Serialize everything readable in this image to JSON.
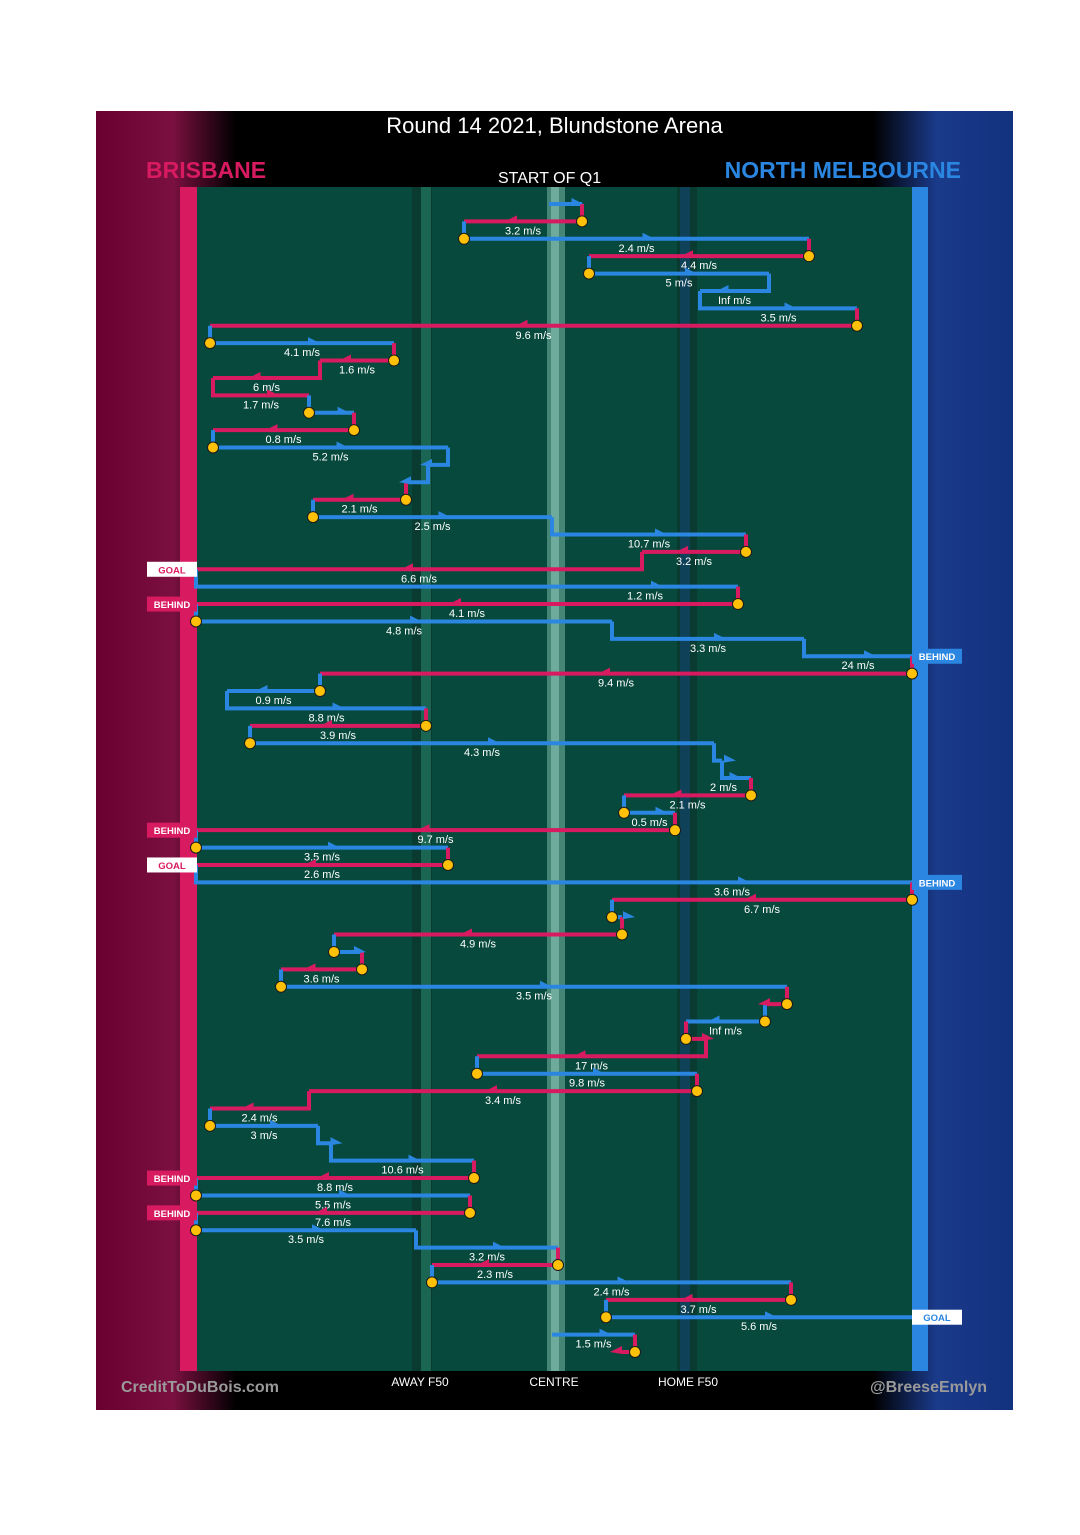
{
  "header": {
    "title": "Round 14 2021, Blundstone Arena",
    "team_left": "BRISBANE",
    "team_right": "NORTH MELBOURNE",
    "subtitle": "START OF Q1"
  },
  "footer": {
    "credit_left": "CreditToDuBois.com",
    "credit_right": "@BreeseEmlyn"
  },
  "colors": {
    "brisbane": "#d81b60",
    "north_melbourne": "#2a86e0",
    "field": "#074a3d",
    "marker": "#ffc107",
    "title_text": "#ffffff"
  },
  "chart_data": {
    "type": "line",
    "description_axis_labels": [
      "AWAY F50",
      "CENTRE",
      "HOME F50"
    ],
    "outcome_labels": {
      "goal": "GOAL",
      "behind": "BEHIND"
    },
    "segments": [
      {
        "team": "North Melbourne",
        "speed": "",
        "start": 549,
        "end": 582
      },
      {
        "team": "Brisbane",
        "speed": "3.2 m/s",
        "start": 582,
        "end": 464
      },
      {
        "team": "North Melbourne",
        "speed": "2.4 m/s",
        "start": 464,
        "end": 809
      },
      {
        "team": "Brisbane",
        "speed": "4.4 m/s",
        "start": 809,
        "end": 589
      },
      {
        "team": "North Melbourne",
        "speed": "5 m/s",
        "start": 589,
        "end": 769
      },
      {
        "team": "North Melbourne",
        "speed": "Inf m/s",
        "start": 769,
        "end": 700
      },
      {
        "team": "North Melbourne",
        "speed": "3.5 m/s",
        "start": 700,
        "end": 857
      },
      {
        "team": "Brisbane",
        "speed": "9.6 m/s",
        "start": 857,
        "end": 210
      },
      {
        "team": "North Melbourne",
        "speed": "4.1 m/s",
        "start": 210,
        "end": 394
      },
      {
        "team": "Brisbane",
        "speed": "1.6 m/s",
        "start": 394,
        "end": 320
      },
      {
        "team": "Brisbane",
        "speed": "6 m/s",
        "start": 320,
        "end": 213
      },
      {
        "team": "Brisbane",
        "speed": "1.7 m/s",
        "start": 213,
        "end": 309
      },
      {
        "team": "North Melbourne",
        "speed": "",
        "start": 309,
        "end": 354
      },
      {
        "team": "Brisbane",
        "speed": "0.8 m/s",
        "start": 354,
        "end": 213
      },
      {
        "team": "North Melbourne",
        "speed": "5.2 m/s",
        "start": 213,
        "end": 448
      },
      {
        "team": "North Melbourne",
        "speed": "",
        "start": 448,
        "end": 428
      },
      {
        "team": "North Melbourne",
        "speed": "",
        "start": 428,
        "end": 406
      },
      {
        "team": "Brisbane",
        "speed": "2.1 m/s",
        "start": 406,
        "end": 313
      },
      {
        "team": "North Melbourne",
        "speed": "2.5 m/s",
        "start": 313,
        "end": 552
      },
      {
        "team": "North Melbourne",
        "speed": "10.7 m/s",
        "start": 552,
        "end": 746
      },
      {
        "team": "Brisbane",
        "speed": "3.2 m/s",
        "start": 746,
        "end": 642
      },
      {
        "team": "Brisbane",
        "speed": "6.6 m/s",
        "start": 642,
        "end": 196,
        "outcome": "GOAL"
      },
      {
        "team": "North Melbourne",
        "speed": "1.2 m/s",
        "start": 552,
        "end": 738
      },
      {
        "team": "Brisbane",
        "speed": "4.1 m/s",
        "start": 738,
        "end": 196,
        "outcome": "BEHIND"
      },
      {
        "team": "North Melbourne",
        "speed": "4.8 m/s",
        "start": 196,
        "end": 612
      },
      {
        "team": "North Melbourne",
        "speed": "3.3 m/s",
        "start": 612,
        "end": 804
      },
      {
        "team": "North Melbourne",
        "speed": "24 m/s",
        "start": 804,
        "end": 912,
        "outcome": "BEHIND"
      },
      {
        "team": "Brisbane",
        "speed": "9.4 m/s",
        "start": 912,
        "end": 320
      },
      {
        "team": "North Melbourne",
        "speed": "0.9 m/s",
        "start": 320,
        "end": 227
      },
      {
        "team": "North Melbourne",
        "speed": "8.8 m/s",
        "start": 227,
        "end": 426
      },
      {
        "team": "Brisbane",
        "speed": "3.9 m/s",
        "start": 426,
        "end": 250
      },
      {
        "team": "North Melbourne",
        "speed": "4.3 m/s",
        "start": 250,
        "end": 714
      },
      {
        "team": "North Melbourne",
        "speed": "",
        "start": 714,
        "end": 722
      },
      {
        "team": "North Melbourne",
        "speed": "2 m/s",
        "start": 696,
        "end": 751
      },
      {
        "team": "Brisbane",
        "speed": "2.1 m/s",
        "start": 751,
        "end": 624
      },
      {
        "team": "North Melbourne",
        "speed": "0.5 m/s",
        "start": 624,
        "end": 675
      },
      {
        "team": "Brisbane",
        "speed": "9.7 m/s",
        "start": 675,
        "end": 196,
        "outcome": "BEHIND"
      },
      {
        "team": "North Melbourne",
        "speed": "3.5 m/s",
        "start": 196,
        "end": 448
      },
      {
        "team": "Brisbane",
        "speed": "2.6 m/s",
        "start": 448,
        "end": 196,
        "outcome": "GOAL"
      },
      {
        "team": "North Melbourne",
        "speed": "3.6 m/s",
        "start": 552,
        "end": 912,
        "outcome": "BEHIND"
      },
      {
        "team": "Brisbane",
        "speed": "6.7 m/s",
        "start": 912,
        "end": 612
      },
      {
        "team": "North Melbourne",
        "speed": "",
        "start": 612,
        "end": 622
      },
      {
        "team": "Brisbane",
        "speed": "4.9 m/s",
        "start": 622,
        "end": 334
      },
      {
        "team": "North Melbourne",
        "speed": "",
        "start": 334,
        "end": 362
      },
      {
        "team": "Brisbane",
        "speed": "3.6 m/s",
        "start": 362,
        "end": 281
      },
      {
        "team": "North Melbourne",
        "speed": "3.5 m/s",
        "start": 281,
        "end": 787
      },
      {
        "team": "Brisbane",
        "speed": "",
        "start": 787,
        "end": 765
      },
      {
        "team": "North Melbourne",
        "speed": "Inf m/s",
        "start": 765,
        "end": 686
      },
      {
        "team": "Brisbane",
        "speed": "",
        "start": 686,
        "end": 706
      },
      {
        "team": "Brisbane",
        "speed": "17 m/s",
        "start": 706,
        "end": 477
      },
      {
        "team": "North Melbourne",
        "speed": "9.8 m/s",
        "start": 477,
        "end": 697
      },
      {
        "team": "Brisbane",
        "speed": "3.4 m/s",
        "start": 697,
        "end": 309
      },
      {
        "team": "Brisbane",
        "speed": "2.4 m/s",
        "start": 309,
        "end": 210
      },
      {
        "team": "North Melbourne",
        "speed": "3 m/s",
        "start": 210,
        "end": 318
      },
      {
        "team": "North Melbourne",
        "speed": "",
        "start": 318,
        "end": 331
      },
      {
        "team": "North Melbourne",
        "speed": "10.6 m/s",
        "start": 331,
        "end": 474
      },
      {
        "team": "Brisbane",
        "speed": "8.8 m/s",
        "start": 474,
        "end": 196,
        "outcome": "BEHIND"
      },
      {
        "team": "North Melbourne",
        "speed": "5.5 m/s",
        "start": 196,
        "end": 470
      },
      {
        "team": "Brisbane",
        "speed": "7.6 m/s",
        "start": 470,
        "end": 196,
        "outcome": "BEHIND"
      },
      {
        "team": "North Melbourne",
        "speed": "3.5 m/s",
        "start": 196,
        "end": 416
      },
      {
        "team": "North Melbourne",
        "speed": "3.2 m/s",
        "start": 416,
        "end": 558
      },
      {
        "team": "Brisbane",
        "speed": "2.3 m/s",
        "start": 558,
        "end": 432
      },
      {
        "team": "North Melbourne",
        "speed": "2.4 m/s",
        "start": 432,
        "end": 791
      },
      {
        "team": "Brisbane",
        "speed": "3.7 m/s",
        "start": 791,
        "end": 606
      },
      {
        "team": "North Melbourne",
        "speed": "5.6 m/s",
        "start": 606,
        "end": 912,
        "outcome": "GOAL"
      },
      {
        "team": "North Melbourne",
        "speed": "1.5 m/s",
        "start": 552,
        "end": 635
      },
      {
        "team": "Brisbane",
        "speed": "",
        "start": 635,
        "end": 621
      }
    ]
  }
}
